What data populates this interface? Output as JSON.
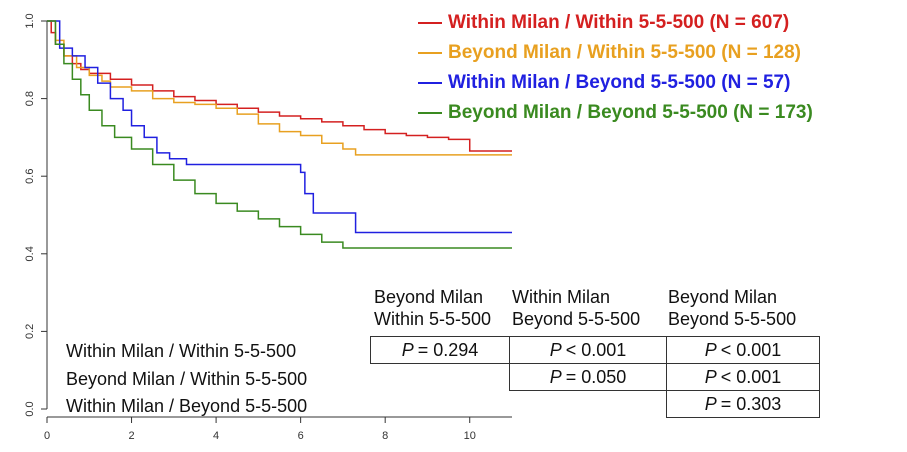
{
  "chart_data": {
    "type": "line",
    "xlim": [
      0,
      11
    ],
    "ylim": [
      0,
      1.0
    ],
    "x_ticks": [
      "0",
      "2",
      "4",
      "6",
      "8",
      "10"
    ],
    "y_ticks": [
      "0.0",
      "0.2",
      "0.4",
      "0.6",
      "0.8",
      "1.0"
    ],
    "grid": false,
    "legend_position": "top-right",
    "series": [
      {
        "name": "Within Milan / Within 5-5-500 (N = 607)",
        "color": "#d42020",
        "points": [
          [
            0,
            1.0
          ],
          [
            0.1,
            0.97
          ],
          [
            0.2,
            0.94
          ],
          [
            0.4,
            0.91
          ],
          [
            0.6,
            0.89
          ],
          [
            0.8,
            0.875
          ],
          [
            1.0,
            0.865
          ],
          [
            1.5,
            0.85
          ],
          [
            2.0,
            0.835
          ],
          [
            2.5,
            0.82
          ],
          [
            3.0,
            0.805
          ],
          [
            3.5,
            0.795
          ],
          [
            4.0,
            0.785
          ],
          [
            4.5,
            0.775
          ],
          [
            5.0,
            0.765
          ],
          [
            5.5,
            0.755
          ],
          [
            6.0,
            0.748
          ],
          [
            6.5,
            0.74
          ],
          [
            7.0,
            0.73
          ],
          [
            7.5,
            0.72
          ],
          [
            8.0,
            0.71
          ],
          [
            8.5,
            0.705
          ],
          [
            9.0,
            0.7
          ],
          [
            9.5,
            0.695
          ],
          [
            10.0,
            0.665
          ],
          [
            11.0,
            0.665
          ]
        ]
      },
      {
        "name": "Beyond Milan / Within 5-5-500 (N = 128)",
        "color": "#e8a020",
        "points": [
          [
            0,
            1.0
          ],
          [
            0.2,
            0.95
          ],
          [
            0.4,
            0.91
          ],
          [
            0.7,
            0.88
          ],
          [
            1.0,
            0.86
          ],
          [
            1.3,
            0.845
          ],
          [
            1.5,
            0.83
          ],
          [
            2.0,
            0.82
          ],
          [
            2.5,
            0.8
          ],
          [
            3.0,
            0.79
          ],
          [
            3.5,
            0.785
          ],
          [
            4.0,
            0.775
          ],
          [
            4.5,
            0.76
          ],
          [
            5.0,
            0.735
          ],
          [
            5.5,
            0.715
          ],
          [
            6.0,
            0.705
          ],
          [
            6.5,
            0.685
          ],
          [
            7.0,
            0.67
          ],
          [
            7.3,
            0.655
          ],
          [
            8.0,
            0.655
          ],
          [
            11.0,
            0.655
          ]
        ]
      },
      {
        "name": "Within Milan / Beyond 5-5-500 (N = 57)",
        "color": "#2020e0",
        "points": [
          [
            0,
            1.0
          ],
          [
            0.3,
            0.93
          ],
          [
            0.6,
            0.91
          ],
          [
            0.9,
            0.88
          ],
          [
            1.2,
            0.84
          ],
          [
            1.5,
            0.8
          ],
          [
            1.8,
            0.77
          ],
          [
            2.0,
            0.73
          ],
          [
            2.3,
            0.7
          ],
          [
            2.6,
            0.66
          ],
          [
            2.9,
            0.645
          ],
          [
            3.3,
            0.63
          ],
          [
            3.5,
            0.63
          ],
          [
            4.0,
            0.63
          ],
          [
            5.5,
            0.63
          ],
          [
            6.0,
            0.61
          ],
          [
            6.1,
            0.555
          ],
          [
            6.3,
            0.505
          ],
          [
            6.8,
            0.505
          ],
          [
            7.3,
            0.455
          ],
          [
            9.0,
            0.455
          ],
          [
            11.0,
            0.455
          ]
        ]
      },
      {
        "name": "Beyond Milan / Beyond 5-5-500 (N = 173)",
        "color": "#3a8a20",
        "points": [
          [
            0,
            1.0
          ],
          [
            0.2,
            0.94
          ],
          [
            0.4,
            0.89
          ],
          [
            0.6,
            0.85
          ],
          [
            0.8,
            0.81
          ],
          [
            1.0,
            0.77
          ],
          [
            1.3,
            0.73
          ],
          [
            1.6,
            0.7
          ],
          [
            2.0,
            0.67
          ],
          [
            2.5,
            0.63
          ],
          [
            3.0,
            0.59
          ],
          [
            3.5,
            0.555
          ],
          [
            4.0,
            0.53
          ],
          [
            4.5,
            0.51
          ],
          [
            5.0,
            0.49
          ],
          [
            5.5,
            0.47
          ],
          [
            6.0,
            0.45
          ],
          [
            6.5,
            0.43
          ],
          [
            7.0,
            0.415
          ],
          [
            8.0,
            0.415
          ],
          [
            11.0,
            0.415
          ]
        ]
      }
    ],
    "row_labels": [
      "Within Milan / Within 5-5-500",
      "Beyond Milan / Within 5-5-500",
      "Within Milan / Beyond 5-5-500"
    ],
    "table": {
      "columns": [
        {
          "line1": "Beyond Milan",
          "line2": "Within 5-5-500"
        },
        {
          "line1": "Within Milan",
          "line2": "Beyond 5-5-500"
        },
        {
          "line1": "Beyond Milan",
          "line2": "Beyond 5-5-500"
        }
      ],
      "cells": [
        {
          "row": 0,
          "col": 0,
          "p_symbol": "P",
          "text": "= 0.294"
        },
        {
          "row": 0,
          "col": 1,
          "p_symbol": "P",
          "text": "< 0.001"
        },
        {
          "row": 0,
          "col": 2,
          "p_symbol": "P",
          "text": "< 0.001"
        },
        {
          "row": 1,
          "col": 1,
          "p_symbol": "P",
          "text": "= 0.050"
        },
        {
          "row": 1,
          "col": 2,
          "p_symbol": "P",
          "text": "< 0.001"
        },
        {
          "row": 2,
          "col": 2,
          "p_symbol": "P",
          "text": "= 0.303"
        }
      ]
    }
  }
}
